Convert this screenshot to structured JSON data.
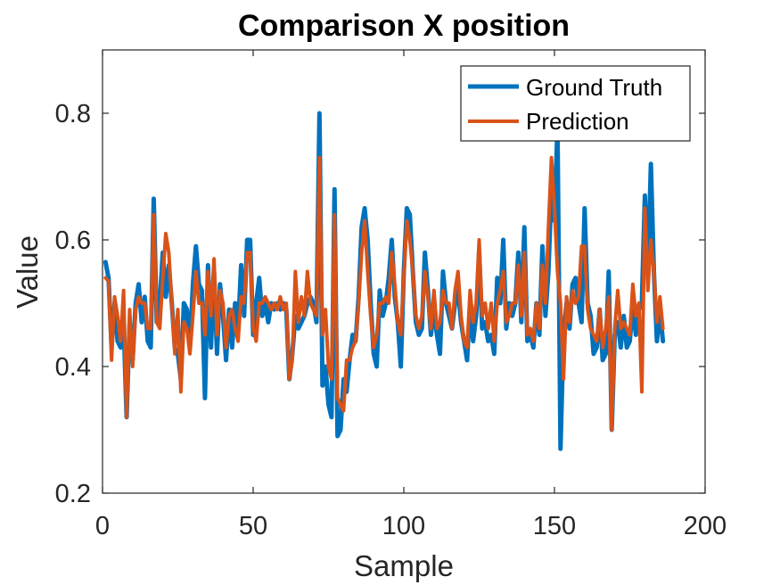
{
  "chart_data": {
    "type": "line",
    "title": "Comparison X position",
    "xlabel": "Sample",
    "ylabel": "Value",
    "xlim": [
      0,
      200
    ],
    "ylim": [
      0.2,
      0.9
    ],
    "xticks": [
      0,
      50,
      100,
      150,
      200
    ],
    "yticks": [
      0.2,
      0.4,
      0.6,
      0.8
    ],
    "xtick_labels": [
      "0",
      "50",
      "100",
      "150",
      "200"
    ],
    "ytick_labels": [
      "0.2",
      "0.4",
      "0.6",
      "0.8"
    ],
    "legend_position": "top-right",
    "x_start": 1,
    "series": [
      {
        "name": "Ground Truth",
        "color": "#0072BD",
        "values": [
          0.565,
          0.54,
          0.43,
          0.5,
          0.44,
          0.43,
          0.47,
          0.32,
          0.47,
          0.41,
          0.5,
          0.53,
          0.47,
          0.51,
          0.44,
          0.43,
          0.665,
          0.47,
          0.5,
          0.58,
          0.51,
          0.56,
          0.5,
          0.43,
          0.42,
          0.38,
          0.5,
          0.49,
          0.43,
          0.53,
          0.59,
          0.53,
          0.52,
          0.35,
          0.56,
          0.43,
          0.55,
          0.42,
          0.53,
          0.48,
          0.41,
          0.49,
          0.43,
          0.5,
          0.46,
          0.56,
          0.48,
          0.6,
          0.6,
          0.45,
          0.5,
          0.54,
          0.48,
          0.5,
          0.47,
          0.5,
          0.49,
          0.5,
          0.49,
          0.5,
          0.49,
          0.38,
          0.42,
          0.48,
          0.46,
          0.47,
          0.48,
          0.5,
          0.51,
          0.5,
          0.47,
          0.8,
          0.37,
          0.4,
          0.34,
          0.32,
          0.68,
          0.29,
          0.3,
          0.38,
          0.36,
          0.41,
          0.45,
          0.44,
          0.51,
          0.62,
          0.65,
          0.6,
          0.5,
          0.42,
          0.4,
          0.52,
          0.48,
          0.5,
          0.54,
          0.6,
          0.51,
          0.47,
          0.4,
          0.55,
          0.65,
          0.64,
          0.55,
          0.47,
          0.45,
          0.46,
          0.58,
          0.52,
          0.45,
          0.49,
          0.45,
          0.42,
          0.55,
          0.5,
          0.48,
          0.46,
          0.5,
          0.52,
          0.47,
          0.44,
          0.41,
          0.5,
          0.44,
          0.48,
          0.58,
          0.46,
          0.47,
          0.44,
          0.45,
          0.42,
          0.54,
          0.5,
          0.6,
          0.46,
          0.5,
          0.48,
          0.5,
          0.58,
          0.47,
          0.62,
          0.44,
          0.45,
          0.43,
          0.5,
          0.45,
          0.59,
          0.48,
          0.55,
          0.68,
          0.63,
          0.78,
          0.27,
          0.45,
          0.5,
          0.46,
          0.53,
          0.54,
          0.5,
          0.47,
          0.65,
          0.5,
          0.48,
          0.42,
          0.43,
          0.49,
          0.41,
          0.42,
          0.55,
          0.3,
          0.45,
          0.47,
          0.43,
          0.48,
          0.43,
          0.44,
          0.5,
          0.45,
          0.49,
          0.5,
          0.67,
          0.55,
          0.72,
          0.55,
          0.44,
          0.49,
          0.44
        ],
        "line_width": 5
      },
      {
        "name": "Prediction",
        "color": "#D95319",
        "values": [
          0.54,
          0.535,
          0.41,
          0.51,
          0.48,
          0.44,
          0.52,
          0.32,
          0.49,
          0.4,
          0.49,
          0.51,
          0.5,
          0.5,
          0.46,
          0.46,
          0.64,
          0.47,
          0.46,
          0.54,
          0.61,
          0.58,
          0.5,
          0.42,
          0.49,
          0.36,
          0.47,
          0.46,
          0.42,
          0.48,
          0.55,
          0.5,
          0.5,
          0.45,
          0.55,
          0.48,
          0.57,
          0.45,
          0.52,
          0.5,
          0.43,
          0.48,
          0.49,
          0.46,
          0.44,
          0.51,
          0.5,
          0.58,
          0.58,
          0.46,
          0.44,
          0.5,
          0.5,
          0.51,
          0.5,
          0.49,
          0.5,
          0.49,
          0.51,
          0.49,
          0.5,
          0.38,
          0.41,
          0.55,
          0.47,
          0.51,
          0.48,
          0.55,
          0.5,
          0.49,
          0.48,
          0.73,
          0.45,
          0.49,
          0.4,
          0.38,
          0.64,
          0.35,
          0.34,
          0.33,
          0.41,
          0.41,
          0.43,
          0.44,
          0.5,
          0.58,
          0.63,
          0.55,
          0.48,
          0.43,
          0.45,
          0.5,
          0.5,
          0.51,
          0.5,
          0.58,
          0.53,
          0.47,
          0.45,
          0.54,
          0.63,
          0.6,
          0.55,
          0.48,
          0.46,
          0.48,
          0.55,
          0.51,
          0.46,
          0.52,
          0.46,
          0.47,
          0.52,
          0.5,
          0.5,
          0.46,
          0.52,
          0.55,
          0.48,
          0.44,
          0.43,
          0.52,
          0.47,
          0.5,
          0.6,
          0.48,
          0.5,
          0.46,
          0.5,
          0.44,
          0.5,
          0.52,
          0.55,
          0.47,
          0.48,
          0.5,
          0.5,
          0.56,
          0.48,
          0.58,
          0.45,
          0.46,
          0.44,
          0.5,
          0.46,
          0.56,
          0.5,
          0.62,
          0.73,
          0.65,
          0.55,
          0.5,
          0.38,
          0.51,
          0.47,
          0.52,
          0.5,
          0.51,
          0.59,
          0.59,
          0.49,
          0.46,
          0.45,
          0.44,
          0.49,
          0.43,
          0.46,
          0.51,
          0.3,
          0.46,
          0.52,
          0.46,
          0.47,
          0.46,
          0.45,
          0.53,
          0.48,
          0.5,
          0.36,
          0.65,
          0.52,
          0.6,
          0.55,
          0.47,
          0.51,
          0.46
        ],
        "line_width": 4
      }
    ]
  }
}
